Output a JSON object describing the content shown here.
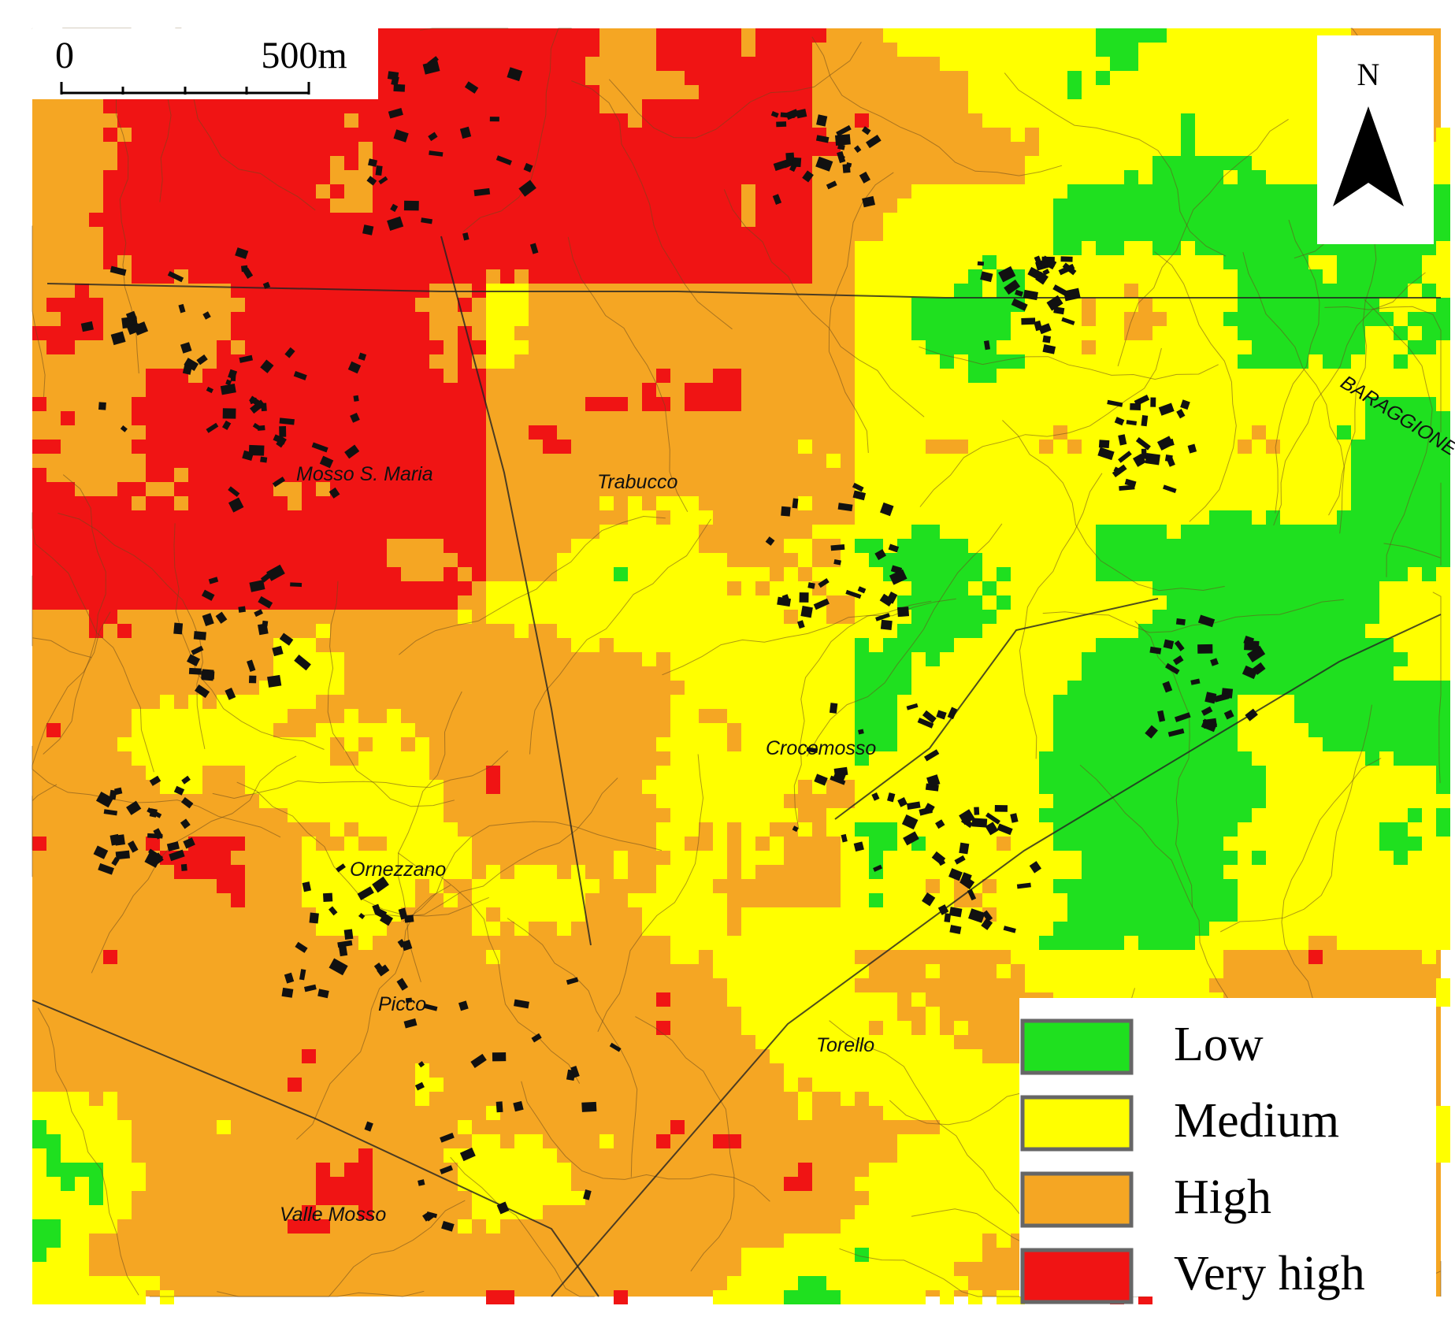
{
  "scale_bar": {
    "start_label": "0",
    "end_label": "500m"
  },
  "north_arrow": {
    "label": "N"
  },
  "legend": {
    "items": [
      {
        "label": "Low",
        "color": "#1fe01f"
      },
      {
        "label": "Medium",
        "color": "#ffff00"
      },
      {
        "label": "High",
        "color": "#f5a623"
      },
      {
        "label": "Very high",
        "color": "#f01414"
      }
    ]
  },
  "place_names": [
    {
      "label": "Mosso S. Maria"
    },
    {
      "label": "Trabucco"
    },
    {
      "label": "Crocemosso"
    },
    {
      "label": "Ornezzano"
    },
    {
      "label": "Picco"
    },
    {
      "label": "Torello"
    },
    {
      "label": "Valle Mosso"
    },
    {
      "label": "BARAGGIONE"
    }
  ]
}
